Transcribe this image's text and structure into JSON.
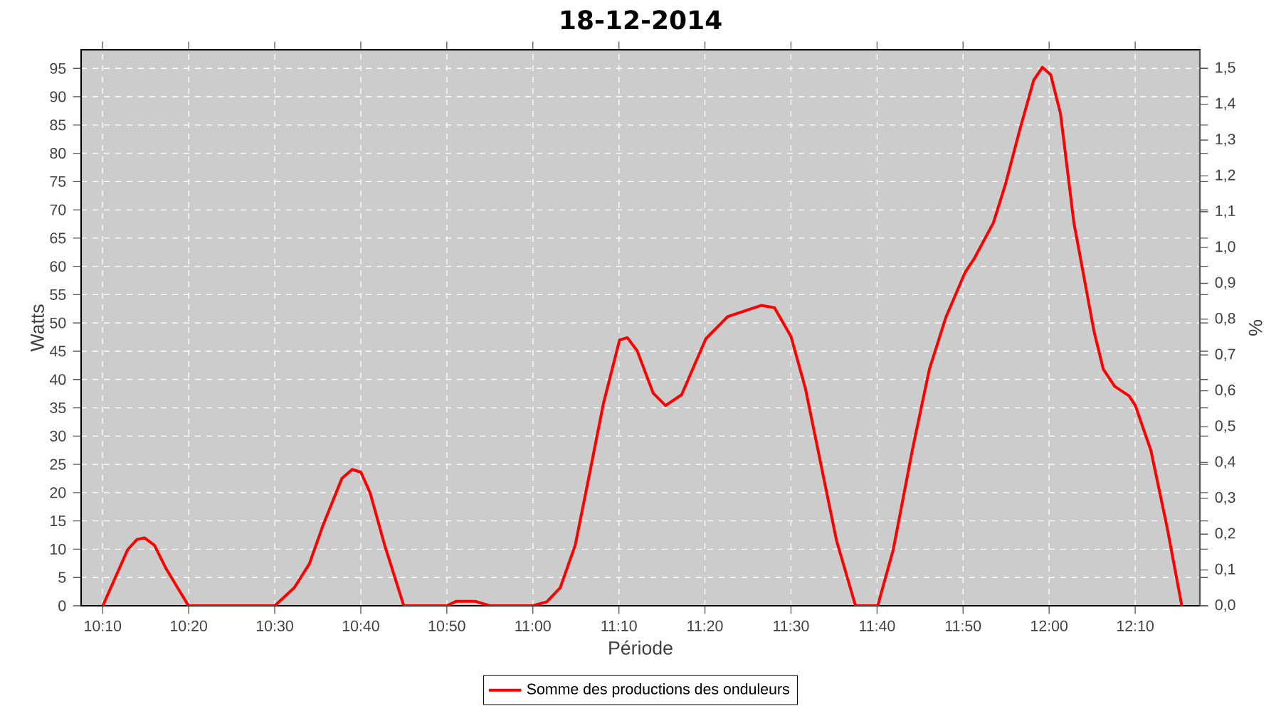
{
  "chart_data": {
    "type": "line",
    "title": "18-12-2014",
    "xlabel": "Période",
    "ylabel": "Watts",
    "y2label": "%",
    "series": [
      {
        "name": "Somme des productions des onduleurs",
        "color": "#ff0000",
        "x": [
          10.167,
          10.215,
          10.233,
          10.248,
          10.267,
          10.29,
          10.333,
          10.417,
          10.5,
          10.538,
          10.567,
          10.593,
          10.63,
          10.65,
          10.667,
          10.685,
          10.713,
          10.75,
          10.833,
          10.852,
          10.888,
          10.917,
          11,
          11.027,
          11.053,
          11.082,
          11.108,
          11.137,
          11.168,
          11.183,
          11.202,
          11.233,
          11.257,
          11.288,
          11.335,
          11.377,
          11.442,
          11.468,
          11.5,
          11.528,
          11.56,
          11.588,
          11.625,
          11.668,
          11.698,
          11.735,
          11.768,
          11.8,
          11.837,
          11.855,
          11.892,
          11.915,
          11.943,
          11.97,
          11.987,
          12.003,
          12.022,
          12.048,
          12.087,
          12.105,
          12.127,
          12.155,
          12.167,
          12.197,
          12.228,
          12.257
        ],
        "values": [
          0,
          9.9,
          11.7,
          12,
          10.7,
          6.5,
          0,
          0,
          0,
          3.2,
          7.4,
          14.1,
          22.5,
          24.1,
          23.6,
          19.9,
          10.7,
          0,
          0,
          0.8,
          0.8,
          0,
          0,
          0.7,
          3.2,
          10.7,
          22.5,
          35.9,
          47,
          47.4,
          45.1,
          37.6,
          35.4,
          37.3,
          47.2,
          51.1,
          53.1,
          52.7,
          47.6,
          38.4,
          24.1,
          11.6,
          0,
          0,
          9.9,
          27.5,
          41.8,
          51,
          58.9,
          61.4,
          67.7,
          74.4,
          84.1,
          92.9,
          95.2,
          93.9,
          87,
          67.7,
          48.5,
          41.8,
          38.8,
          37.1,
          35.4,
          27.5,
          14.1,
          0
        ]
      }
    ],
    "xlim": [
      10.125,
      12.292
    ],
    "xticks": [
      {
        "value": 10.1667,
        "label": "10:10"
      },
      {
        "value": 10.3333,
        "label": "10:20"
      },
      {
        "value": 10.5,
        "label": "10:30"
      },
      {
        "value": 10.6667,
        "label": "10:40"
      },
      {
        "value": 10.8333,
        "label": "10:50"
      },
      {
        "value": 11,
        "label": "11:00"
      },
      {
        "value": 11.1667,
        "label": "11:10"
      },
      {
        "value": 11.3333,
        "label": "11:20"
      },
      {
        "value": 11.5,
        "label": "11:30"
      },
      {
        "value": 11.6667,
        "label": "11:40"
      },
      {
        "value": 11.8333,
        "label": "11:50"
      },
      {
        "value": 12,
        "label": "12:00"
      },
      {
        "value": 12.1667,
        "label": "12:10"
      }
    ],
    "ylim": [
      0,
      98.3
    ],
    "yticks": [
      0,
      5,
      10,
      15,
      20,
      25,
      30,
      35,
      40,
      45,
      50,
      55,
      60,
      65,
      70,
      75,
      80,
      85,
      90,
      95
    ],
    "y2lim": [
      0,
      1.552
    ],
    "y2ticks": [
      {
        "value": 0,
        "label": "0,0"
      },
      {
        "value": 0.1,
        "label": "0,1"
      },
      {
        "value": 0.2,
        "label": "0,2"
      },
      {
        "value": 0.3,
        "label": "0,3"
      },
      {
        "value": 0.4,
        "label": "0,4"
      },
      {
        "value": 0.5,
        "label": "0,5"
      },
      {
        "value": 0.6,
        "label": "0,6"
      },
      {
        "value": 0.7,
        "label": "0,7"
      },
      {
        "value": 0.8,
        "label": "0,8"
      },
      {
        "value": 0.9,
        "label": "0,9"
      },
      {
        "value": 1.0,
        "label": "1,0"
      },
      {
        "value": 1.1,
        "label": "1,1"
      },
      {
        "value": 1.2,
        "label": "1,2"
      },
      {
        "value": 1.3,
        "label": "1,3"
      },
      {
        "value": 1.4,
        "label": "1,4"
      },
      {
        "value": 1.5,
        "label": "1,5"
      }
    ],
    "grid": true,
    "legend": "bottom"
  }
}
